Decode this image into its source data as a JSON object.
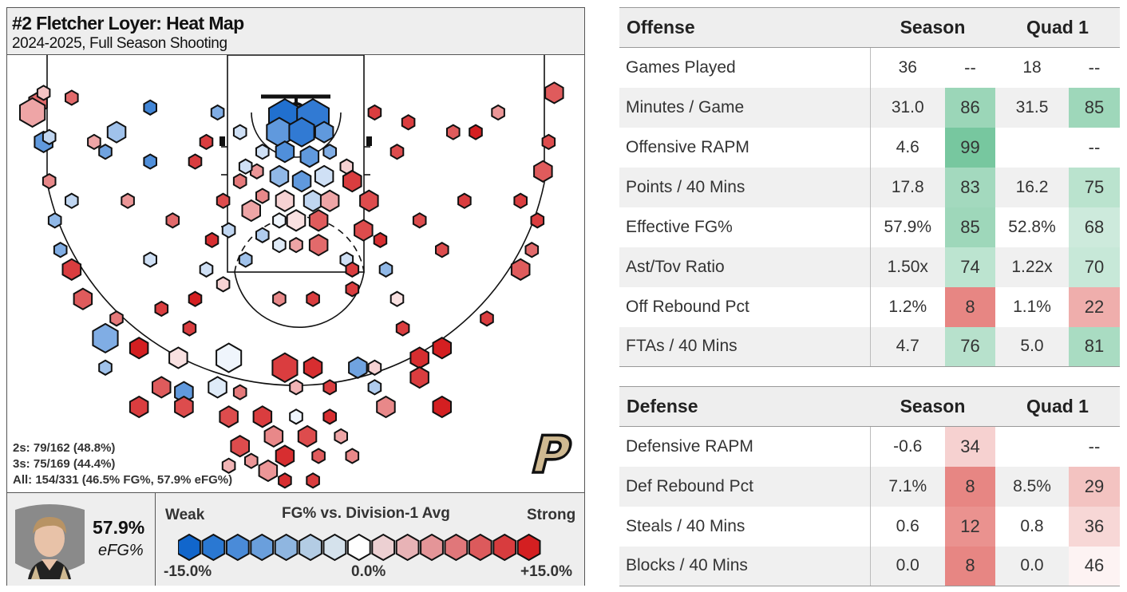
{
  "court": {
    "title": "#2 Fletcher Loyer: Heat Map",
    "subtitle": "2024-2025, Full Season Shooting",
    "stat_2s": "2s: 79/162 (48.8%)",
    "stat_3s": "3s: 75/169 (44.4%)",
    "stat_all": "All: 154/331 (46.5% FG%, 57.9% eFG%)",
    "efg_value": "57.9%",
    "efg_label": "eFG%",
    "logo_letter": "P"
  },
  "legend": {
    "weak": "Weak",
    "strong": "Strong",
    "title": "FG% vs. Division-1 Avg",
    "min": "-15.0%",
    "mid": "0.0%",
    "max": "+15.0%",
    "scale_colors": [
      "#1166cc",
      "#2a78d2",
      "#4a8bd8",
      "#6a9fdc",
      "#8fb6e0",
      "#b3cce4",
      "#d5e2ec",
      "#ffffff",
      "#ecd0d2",
      "#e8b3b6",
      "#e49598",
      "#e0777a",
      "#dc5a5c",
      "#d83c3e",
      "#d41f21"
    ]
  },
  "colors": {
    "green_strong": "#74c69d",
    "red_strong": "#e36f6b"
  },
  "offense": {
    "header": "Offense",
    "col_season": "Season",
    "col_quad": "Quad 1",
    "rows": [
      {
        "label": "Games Played",
        "season": "36",
        "season_pct": "--",
        "quad": "18",
        "quad_pct": "--"
      },
      {
        "label": "Minutes / Game",
        "season": "31.0",
        "season_pct": "86",
        "quad": "31.5",
        "quad_pct": "85"
      },
      {
        "label": "Offensive RAPM",
        "season": "4.6",
        "season_pct": "99",
        "quad": "",
        "quad_pct": "--"
      },
      {
        "label": "Points / 40 Mins",
        "season": "17.8",
        "season_pct": "83",
        "quad": "16.2",
        "quad_pct": "75"
      },
      {
        "label": "Effective FG%",
        "season": "57.9%",
        "season_pct": "85",
        "quad": "52.8%",
        "quad_pct": "68"
      },
      {
        "label": "Ast/Tov Ratio",
        "season": "1.50x",
        "season_pct": "74",
        "quad": "1.22x",
        "quad_pct": "70"
      },
      {
        "label": "Off Rebound Pct",
        "season": "1.2%",
        "season_pct": "8",
        "quad": "1.1%",
        "quad_pct": "22"
      },
      {
        "label": "FTAs / 40 Mins",
        "season": "4.7",
        "season_pct": "76",
        "quad": "5.0",
        "quad_pct": "81"
      }
    ]
  },
  "defense": {
    "header": "Defense",
    "col_season": "Season",
    "col_quad": "Quad 1",
    "rows": [
      {
        "label": "Defensive RAPM",
        "season": "-0.6",
        "season_pct": "34",
        "quad": "",
        "quad_pct": "--"
      },
      {
        "label": "Def Rebound Pct",
        "season": "7.1%",
        "season_pct": "8",
        "quad": "8.5%",
        "quad_pct": "29"
      },
      {
        "label": "Steals / 40 Mins",
        "season": "0.6",
        "season_pct": "12",
        "quad": "0.8",
        "quad_pct": "36"
      },
      {
        "label": "Blocks / 40 Mins",
        "season": "0.0",
        "season_pct": "8",
        "quad": "0.0",
        "quad_pct": "46"
      }
    ]
  },
  "chart_data": {
    "type": "heatmap",
    "title": "#2 Fletcher Loyer: Heat Map",
    "subtitle": "2024-2025, Full Season Shooting",
    "xlabel": "",
    "ylabel": "",
    "color_scale": {
      "label": "FG% vs. Division-1 Avg",
      "min": -15,
      "max": 15,
      "unit": "%"
    },
    "size_scale": "relative shot volume (1-5)",
    "x_range": [
      -25,
      25
    ],
    "y_range": [
      -4,
      40
    ],
    "x_unit": "ft from basket (left-right)",
    "y_unit": "ft from basket (toward half court)",
    "points": [
      [
        -1,
        0.5,
        -14,
        5
      ],
      [
        1.5,
        0.5,
        -13,
        5
      ],
      [
        -1.5,
        2,
        -10,
        4
      ],
      [
        0.5,
        2,
        -13,
        4
      ],
      [
        2.5,
        2,
        -10,
        3
      ],
      [
        -3,
        4,
        -3,
        2
      ],
      [
        -1,
        4,
        -11,
        3
      ],
      [
        1.2,
        4.5,
        -10,
        3
      ],
      [
        3,
        4,
        -8,
        2
      ],
      [
        -3.5,
        6,
        7,
        2
      ],
      [
        -1.5,
        6.5,
        -7,
        3
      ],
      [
        0.5,
        7,
        -10,
        3
      ],
      [
        2.5,
        6.5,
        -3,
        3
      ],
      [
        -3,
        8.5,
        8,
        2
      ],
      [
        -1,
        9,
        3,
        3
      ],
      [
        1.5,
        9,
        -4,
        3
      ],
      [
        3,
        9,
        6,
        3
      ],
      [
        -4,
        10,
        6,
        3
      ],
      [
        -1.5,
        11,
        -1,
        2
      ],
      [
        0,
        11,
        2,
        3
      ],
      [
        2,
        11,
        11,
        3
      ],
      [
        -3,
        12.5,
        -5,
        2
      ],
      [
        -1.5,
        13.5,
        -2,
        2
      ],
      [
        0,
        13.5,
        6,
        2
      ],
      [
        2,
        13.5,
        10,
        3
      ],
      [
        -4.5,
        5.5,
        -3,
        2
      ],
      [
        4.5,
        5.5,
        3,
        2
      ],
      [
        -5,
        7,
        9,
        2
      ],
      [
        5,
        7,
        13,
        3
      ],
      [
        -6.5,
        9,
        12,
        2
      ],
      [
        6.5,
        9,
        12,
        3
      ],
      [
        -6,
        12,
        -4,
        2
      ],
      [
        6,
        12,
        12,
        3
      ],
      [
        -7.5,
        13,
        14,
        2
      ],
      [
        7.5,
        13,
        14,
        2
      ],
      [
        -4.5,
        15,
        -6,
        2
      ],
      [
        4.5,
        15,
        -3,
        2
      ],
      [
        -8,
        16,
        -3,
        2
      ],
      [
        8,
        16,
        -7,
        2
      ],
      [
        -6.5,
        17.5,
        3,
        2
      ],
      [
        -9,
        19,
        15,
        2
      ],
      [
        9,
        19,
        2,
        2
      ],
      [
        -12,
        20,
        13,
        2
      ],
      [
        -1.5,
        19,
        8,
        2
      ],
      [
        1.5,
        19,
        13,
        2
      ],
      [
        5,
        18,
        13,
        2
      ],
      [
        -9.5,
        22,
        13,
        2
      ],
      [
        9.5,
        22,
        13,
        2
      ],
      [
        -10.5,
        25,
        2,
        3
      ],
      [
        -6,
        25,
        -1,
        4
      ],
      [
        -1,
        26,
        13,
        4
      ],
      [
        1.5,
        26,
        14,
        3
      ],
      [
        5.5,
        26,
        -9,
        3
      ],
      [
        7,
        26,
        3,
        2
      ],
      [
        11,
        25,
        14,
        3
      ],
      [
        -14,
        24,
        15,
        3
      ],
      [
        13,
        24,
        15,
        3
      ],
      [
        -12,
        28,
        11,
        3
      ],
      [
        -10,
        28.5,
        -10,
        3
      ],
      [
        -7,
        28,
        -2,
        3
      ],
      [
        -5,
        28.5,
        9,
        2
      ],
      [
        0,
        28,
        5,
        2
      ],
      [
        3,
        28,
        13,
        2
      ],
      [
        7,
        28,
        -5,
        2
      ],
      [
        11,
        27,
        13,
        3
      ],
      [
        -14,
        30,
        13,
        3
      ],
      [
        -10,
        30,
        12,
        3
      ],
      [
        -6,
        31,
        12,
        3
      ],
      [
        -3,
        31,
        13,
        3
      ],
      [
        0,
        31,
        -1,
        2
      ],
      [
        3,
        31,
        14,
        2
      ],
      [
        8,
        30,
        8,
        3
      ],
      [
        13,
        30,
        15,
        3
      ],
      [
        -2,
        33,
        8,
        3
      ],
      [
        1,
        33,
        12,
        3
      ],
      [
        4,
        33,
        6,
        2
      ],
      [
        -5,
        34,
        12,
        3
      ],
      [
        -1,
        35,
        14,
        3
      ],
      [
        2,
        35,
        11,
        2
      ],
      [
        -2.5,
        36.5,
        7,
        3
      ],
      [
        -1,
        37.5,
        14,
        2
      ],
      [
        1.5,
        37.5,
        13,
        2
      ],
      [
        -6,
        36,
        5,
        2
      ],
      [
        -4,
        35.5,
        7,
        2
      ],
      [
        5,
        35,
        8,
        2
      ],
      [
        -17,
        26,
        -6,
        2
      ],
      [
        -17,
        23,
        -8,
        4
      ],
      [
        -16,
        21,
        9,
        2
      ],
      [
        17,
        21,
        13,
        2
      ],
      [
        -19,
        19,
        11,
        3
      ],
      [
        -20,
        16,
        13,
        3
      ],
      [
        20,
        16,
        11,
        3
      ],
      [
        -21,
        14,
        -8,
        2
      ],
      [
        21,
        14,
        10,
        2
      ],
      [
        -21.5,
        11,
        -7,
        2
      ],
      [
        21.5,
        11,
        13,
        2
      ],
      [
        -22.5,
        3,
        -10,
        3
      ],
      [
        22.5,
        3,
        12,
        2
      ],
      [
        -22,
        7,
        8,
        2
      ],
      [
        22,
        6,
        11,
        3
      ],
      [
        -20,
        9,
        -4,
        2
      ],
      [
        20,
        9,
        13,
        2
      ],
      [
        -11,
        11,
        10,
        2
      ],
      [
        11,
        11,
        12,
        2
      ],
      [
        -13,
        15,
        -3,
        2
      ],
      [
        13,
        14,
        12,
        2
      ],
      [
        -15,
        9,
        7,
        2
      ],
      [
        15,
        9,
        13,
        2
      ],
      [
        -16,
        2,
        -6,
        3
      ],
      [
        16,
        2,
        15,
        2
      ],
      [
        -23,
        -1,
        10,
        3
      ],
      [
        -23.5,
        0,
        6,
        4
      ],
      [
        -13,
        5,
        -11,
        2
      ],
      [
        -13,
        -0.5,
        -12,
        2
      ],
      [
        -9,
        5,
        13,
        2
      ],
      [
        -17,
        4,
        -9,
        2
      ],
      [
        -7,
        0,
        -8,
        2
      ],
      [
        -5,
        2,
        -3,
        2
      ],
      [
        7,
        0,
        13,
        2
      ],
      [
        10,
        1,
        13,
        2
      ],
      [
        14,
        2,
        11,
        2
      ],
      [
        -8,
        3,
        13,
        2
      ],
      [
        9,
        4,
        12,
        2
      ],
      [
        -22,
        2.5,
        -4,
        2
      ],
      [
        -18,
        3,
        6,
        2
      ],
      [
        -22.5,
        -2,
        4,
        2
      ],
      [
        23,
        -2,
        11,
        3
      ],
      [
        -20,
        -1.5,
        10,
        2
      ],
      [
        18,
        0,
        7,
        2
      ],
      [
        5,
        16,
        13,
        2
      ]
    ]
  }
}
